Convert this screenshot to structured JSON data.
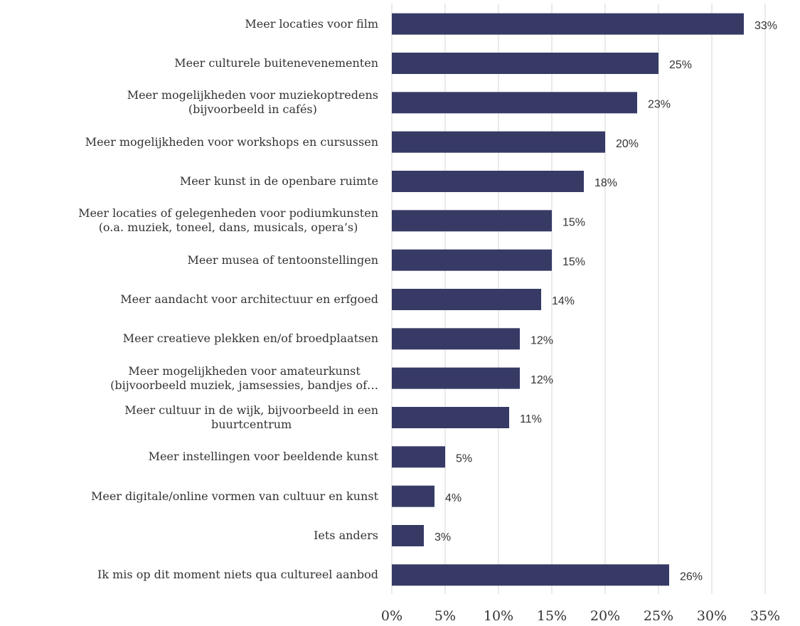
{
  "chart_data": {
    "type": "barh",
    "categories": [
      "Meer locaties voor film",
      "Meer culturele buitenevenementen",
      "Meer mogelijkheden voor muziekoptredens\n(bijvoorbeeld in cafés)",
      "Meer mogelijkheden voor workshops en cursussen",
      "Meer kunst in de openbare ruimte",
      "Meer locaties of gelegenheden voor podiumkunsten\n(o.a. muziek, toneel, dans, musicals, opera’s)",
      "Meer musea of tentoonstellingen",
      "Meer aandacht voor architectuur en erfgoed",
      "Meer creatieve plekken en/of broedplaatsen",
      "Meer mogelijkheden voor amateurkunst\n(bijvoorbeeld muziek, jamsessies, bandjes of…",
      "Meer cultuur in de wijk, bijvoorbeeld in een\nbuurtcentrum",
      "Meer instellingen voor beeldende kunst",
      "Meer digitale/online vormen van cultuur en kunst",
      "Iets anders",
      "Ik mis op dit moment niets qua cultureel aanbod"
    ],
    "values": [
      33,
      25,
      23,
      20,
      18,
      15,
      15,
      14,
      12,
      12,
      11,
      5,
      4,
      3,
      26
    ],
    "value_labels": [
      "33%",
      "25%",
      "23%",
      "20%",
      "18%",
      "15%",
      "15%",
      "14%",
      "12%",
      "12%",
      "11%",
      "5%",
      "4%",
      "3%",
      "26%"
    ],
    "color": "#363a65",
    "xlim": [
      0,
      35
    ],
    "xticks": [
      {
        "value": 0,
        "label": "0%"
      },
      {
        "value": 5,
        "label": "5%"
      },
      {
        "value": 10,
        "label": "10%"
      },
      {
        "value": 15,
        "label": "15%"
      },
      {
        "value": 20,
        "label": "20%"
      },
      {
        "value": 25,
        "label": "25%"
      },
      {
        "value": 30,
        "label": "30%"
      },
      {
        "value": 35,
        "label": "35%"
      }
    ],
    "grid": true
  }
}
